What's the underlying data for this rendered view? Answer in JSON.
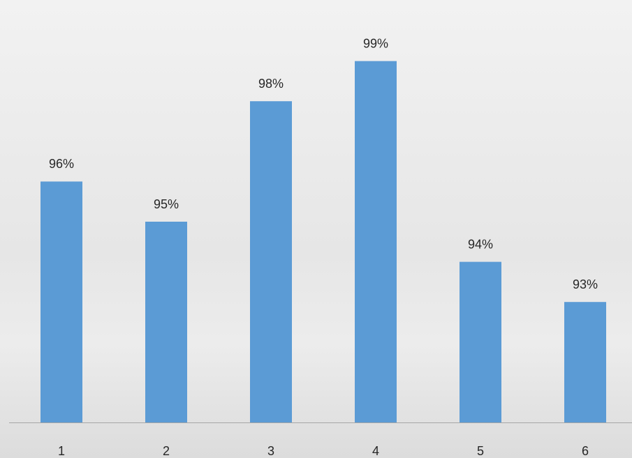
{
  "chart_data": {
    "type": "bar",
    "categories": [
      "1",
      "2",
      "3",
      "4",
      "5",
      "6"
    ],
    "values": [
      96,
      95,
      98,
      99,
      94,
      93
    ],
    "value_labels": [
      "96%",
      "95%",
      "98%",
      "99%",
      "94%",
      "93%"
    ],
    "color": "#5b9bd5",
    "ylim": [
      90,
      100
    ]
  }
}
